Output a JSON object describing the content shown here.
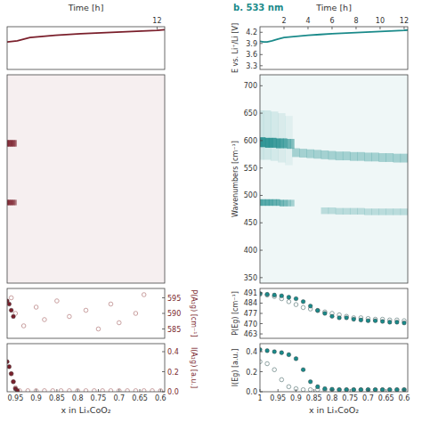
{
  "chart_data": [
    {
      "type": "line",
      "xlim": [
        0.2,
        12.6
      ],
      "xticks": [
        12
      ],
      "x_label": "Time [h]",
      "ylim": [
        3.2,
        4.35
      ],
      "series": [
        {
          "color": "#7a1f2b",
          "x": [
            0.2,
            1,
            2,
            3,
            4,
            6,
            8,
            10,
            12,
            12.6
          ],
          "values": [
            3.94,
            3.97,
            4.06,
            4.09,
            4.12,
            4.16,
            4.19,
            4.22,
            4.25,
            4.27
          ]
        }
      ]
    },
    {
      "type": "spectrum",
      "xlim": [
        0.97,
        0.59
      ],
      "ylim": [
        340,
        720
      ],
      "bands": [
        {
          "color": "#7a1f2b",
          "width": 12,
          "x": [
            0.97,
            0.965,
            0.96,
            0.955,
            0.95
          ],
          "wavenumbers": [
            595,
            595,
            595,
            595,
            595
          ],
          "intensity": [
            0.9,
            0.9,
            0.9,
            0.85,
            0.7
          ]
        },
        {
          "color": "#7a1f2b",
          "width": 10,
          "x": [
            0.97,
            0.965,
            0.96,
            0.955,
            0.95
          ],
          "wavenumbers": [
            487,
            487,
            487,
            487,
            487
          ],
          "intensity": [
            0.9,
            0.9,
            0.85,
            0.8,
            0.6
          ]
        }
      ]
    },
    {
      "type": "scatter",
      "xlim": [
        0.97,
        0.59
      ],
      "y2lim": [
        582,
        598
      ],
      "y2ticks": [
        585,
        590,
        595
      ],
      "y2_label": "P(A₁g) [cm⁻¹]",
      "series": [
        {
          "color": "#c9a0a0",
          "marker": "circle-open",
          "axis": "y2",
          "x": [
            0.96,
            0.95,
            0.93,
            0.9,
            0.88,
            0.85,
            0.82,
            0.78,
            0.75,
            0.72,
            0.7,
            0.66,
            0.64
          ],
          "values": [
            595,
            590,
            586,
            592,
            588,
            594,
            589,
            591,
            585,
            593,
            587,
            590,
            596
          ]
        },
        {
          "color": "#7a1f2b",
          "marker": "circle",
          "axis": "y2",
          "x": [
            0.97,
            0.965,
            0.96,
            0.955
          ],
          "values": [
            594,
            593,
            591,
            589
          ]
        }
      ]
    },
    {
      "type": "scatter",
      "xlim": [
        0.97,
        0.59
      ],
      "xticks": [
        0.95,
        0.9,
        0.85,
        0.8,
        0.75,
        0.7,
        0.65,
        0.6
      ],
      "x_label": "x in LiₓCoO₂",
      "y2lim": [
        0,
        0.48
      ],
      "y2ticks": [
        {
          "value": 0,
          "label": "0.0"
        },
        0.2,
        0.4
      ],
      "y2_label": "I(A₁g) [a.u.]",
      "series": [
        {
          "color": "#c9a0a0",
          "marker": "circle-open",
          "axis": "y2",
          "x": [
            0.96,
            0.955,
            0.95,
            0.94,
            0.92,
            0.9,
            0.88,
            0.86,
            0.84,
            0.82,
            0.8,
            0.78,
            0.76,
            0.74,
            0.72,
            0.7,
            0.68,
            0.66,
            0.64,
            0.62,
            0.6
          ],
          "values": [
            0.18,
            0.1,
            0.04,
            0.01,
            0.01,
            0.01,
            0.01,
            0.01,
            0.01,
            0.01,
            0.01,
            0.01,
            0.01,
            0.01,
            0.01,
            0.01,
            0.01,
            0.01,
            0.01,
            0.01,
            0.01
          ]
        },
        {
          "color": "#7a1f2b",
          "marker": "circle",
          "axis": "y2",
          "x": [
            0.97,
            0.965,
            0.96,
            0.955,
            0.95,
            0.945
          ],
          "values": [
            0.3,
            0.25,
            0.18,
            0.1,
            0.03,
            0.01
          ]
        }
      ]
    },
    {
      "type": "line",
      "title": "b. 533 nm",
      "xlim": [
        0,
        12.3
      ],
      "xticks": [
        2,
        4,
        6,
        8,
        10,
        12
      ],
      "x_label": "Time [h]",
      "ylim": [
        3.2,
        4.35
      ],
      "yticks": [
        3.3,
        3.6,
        3.9,
        4.2
      ],
      "y_label": "E vs. Li⁺/Li [V]",
      "series": [
        {
          "color": "#1a8a8a",
          "x": [
            0,
            0.3,
            0.6,
            1,
            1.5,
            2,
            3,
            4,
            5,
            6,
            8,
            10,
            12,
            12.3
          ],
          "values": [
            3.96,
            3.94,
            3.94,
            3.97,
            4.02,
            4.06,
            4.09,
            4.12,
            4.14,
            4.16,
            4.19,
            4.22,
            4.25,
            4.26
          ]
        }
      ]
    },
    {
      "type": "spectrum",
      "xlim": [
        1,
        0.59
      ],
      "ylim": [
        340,
        720
      ],
      "yticks": [
        350,
        400,
        450,
        500,
        550,
        600,
        650,
        700
      ],
      "y_label": "Wavenumbers [cm⁻¹]",
      "bands": [
        {
          "color": "#1a8a8a",
          "width": 90,
          "x": [
            1,
            0.98,
            0.96,
            0.94,
            0.92
          ],
          "wavenumbers": [
            610,
            610,
            608,
            605,
            600
          ],
          "intensity": [
            0.15,
            0.15,
            0.13,
            0.1,
            0.07
          ]
        },
        {
          "color": "#1a8a8a",
          "width": 18,
          "x": [
            1,
            0.99,
            0.98,
            0.97,
            0.96,
            0.95,
            0.94,
            0.93,
            0.92,
            0.91
          ],
          "wavenumbers": [
            597,
            597,
            596,
            596,
            596,
            595,
            595,
            595,
            594,
            594
          ],
          "intensity": [
            0.85,
            0.85,
            0.85,
            0.85,
            0.8,
            0.8,
            0.75,
            0.7,
            0.6,
            0.5
          ]
        },
        {
          "color": "#1a8a8a",
          "width": 12,
          "x": [
            1,
            0.99,
            0.98,
            0.97,
            0.96,
            0.95,
            0.94,
            0.93,
            0.92,
            0.91
          ],
          "wavenumbers": [
            487,
            487,
            487,
            487,
            487,
            487,
            486,
            486,
            486,
            486
          ],
          "intensity": [
            0.7,
            0.7,
            0.7,
            0.7,
            0.65,
            0.65,
            0.6,
            0.55,
            0.45,
            0.35
          ]
        },
        {
          "color": "#1a8a8a",
          "width": 16,
          "x": [
            0.9,
            0.88,
            0.86,
            0.84,
            0.82,
            0.8,
            0.78,
            0.76,
            0.74,
            0.72,
            0.7,
            0.68,
            0.66,
            0.64,
            0.62,
            0.6
          ],
          "wavenumbers": [
            578,
            577,
            576,
            575,
            574,
            573,
            572,
            572,
            571,
            571,
            570,
            570,
            569,
            569,
            568,
            568
          ],
          "intensity": [
            0.35,
            0.35,
            0.35,
            0.35,
            0.35,
            0.35,
            0.35,
            0.35,
            0.35,
            0.35,
            0.35,
            0.35,
            0.35,
            0.35,
            0.35,
            0.35
          ]
        },
        {
          "color": "#1a8a8a",
          "width": 12,
          "x": [
            0.82,
            0.8,
            0.78,
            0.76,
            0.74,
            0.72,
            0.7,
            0.68,
            0.66,
            0.64,
            0.62,
            0.6
          ],
          "wavenumbers": [
            472,
            472,
            471,
            471,
            471,
            471,
            470,
            470,
            470,
            470,
            470,
            470
          ],
          "intensity": [
            0.25,
            0.25,
            0.25,
            0.25,
            0.25,
            0.25,
            0.25,
            0.25,
            0.25,
            0.25,
            0.25,
            0.25
          ]
        }
      ]
    },
    {
      "type": "scatter",
      "xlim": [
        1,
        0.59
      ],
      "ylim": [
        460,
        494
      ],
      "yticks": [
        463,
        470,
        477,
        484,
        491
      ],
      "y_label": "P(Eg) [cm⁻¹]",
      "series": [
        {
          "color": "#8fa3a3",
          "marker": "circle-open",
          "x": [
            1,
            0.98,
            0.96,
            0.94,
            0.92,
            0.9,
            0.88,
            0.86,
            0.84,
            0.82,
            0.8,
            0.78,
            0.76,
            0.74,
            0.72,
            0.7,
            0.68,
            0.66,
            0.64,
            0.62,
            0.6
          ],
          "values": [
            490,
            489.5,
            488.5,
            487,
            485,
            483,
            481,
            480,
            479,
            478,
            477,
            476,
            475,
            474,
            474,
            473.5,
            473,
            473,
            472.5,
            472.5,
            472
          ]
        },
        {
          "color": "#1a8a8a",
          "marker": "circle",
          "x": [
            1,
            0.98,
            0.96,
            0.94,
            0.92,
            0.9,
            0.88,
            0.86,
            0.84,
            0.82,
            0.8,
            0.78,
            0.76,
            0.74,
            0.72,
            0.7,
            0.68,
            0.66,
            0.64,
            0.62,
            0.6
          ],
          "values": [
            490.5,
            490,
            489.5,
            489,
            488,
            487,
            485,
            482,
            479,
            477,
            475,
            474,
            474,
            473,
            472.5,
            472,
            472,
            471.5,
            471,
            471,
            470.5
          ]
        }
      ]
    },
    {
      "type": "scatter",
      "xlim": [
        1,
        0.59
      ],
      "xticks": [
        1,
        0.95,
        0.9,
        0.85,
        0.8,
        0.75,
        0.7,
        0.65,
        0.6
      ],
      "x_label": "x in LiₓCoO₂",
      "ylim": [
        0,
        0.48
      ],
      "yticks": [
        {
          "value": 0,
          "label": "0.0"
        },
        0.2,
        0.4
      ],
      "y_label": "I(Eg) [a.u.]",
      "series": [
        {
          "color": "#8fa3a3",
          "marker": "circle-open",
          "x": [
            1,
            0.98,
            0.96,
            0.94,
            0.92,
            0.9,
            0.88,
            0.86,
            0.84,
            0.82,
            0.8,
            0.78,
            0.76,
            0.74,
            0.72,
            0.7,
            0.68,
            0.66,
            0.64,
            0.62,
            0.6
          ],
          "values": [
            0.3,
            0.28,
            0.22,
            0.12,
            0.05,
            0.03,
            0.02,
            0.02,
            0.02,
            0.02,
            0.02,
            0.02,
            0.02,
            0.02,
            0.02,
            0.02,
            0.02,
            0.02,
            0.02,
            0.02,
            0.02
          ]
        },
        {
          "color": "#1a8a8a",
          "marker": "circle",
          "x": [
            1,
            0.98,
            0.96,
            0.94,
            0.92,
            0.9,
            0.88,
            0.86,
            0.84,
            0.82,
            0.8,
            0.78,
            0.76,
            0.74,
            0.72,
            0.7,
            0.68,
            0.66,
            0.64,
            0.62,
            0.6
          ],
          "values": [
            0.42,
            0.41,
            0.4,
            0.39,
            0.37,
            0.33,
            0.22,
            0.1,
            0.05,
            0.03,
            0.025,
            0.02,
            0.02,
            0.02,
            0.02,
            0.02,
            0.02,
            0.02,
            0.02,
            0.02,
            0.02
          ]
        }
      ]
    }
  ]
}
